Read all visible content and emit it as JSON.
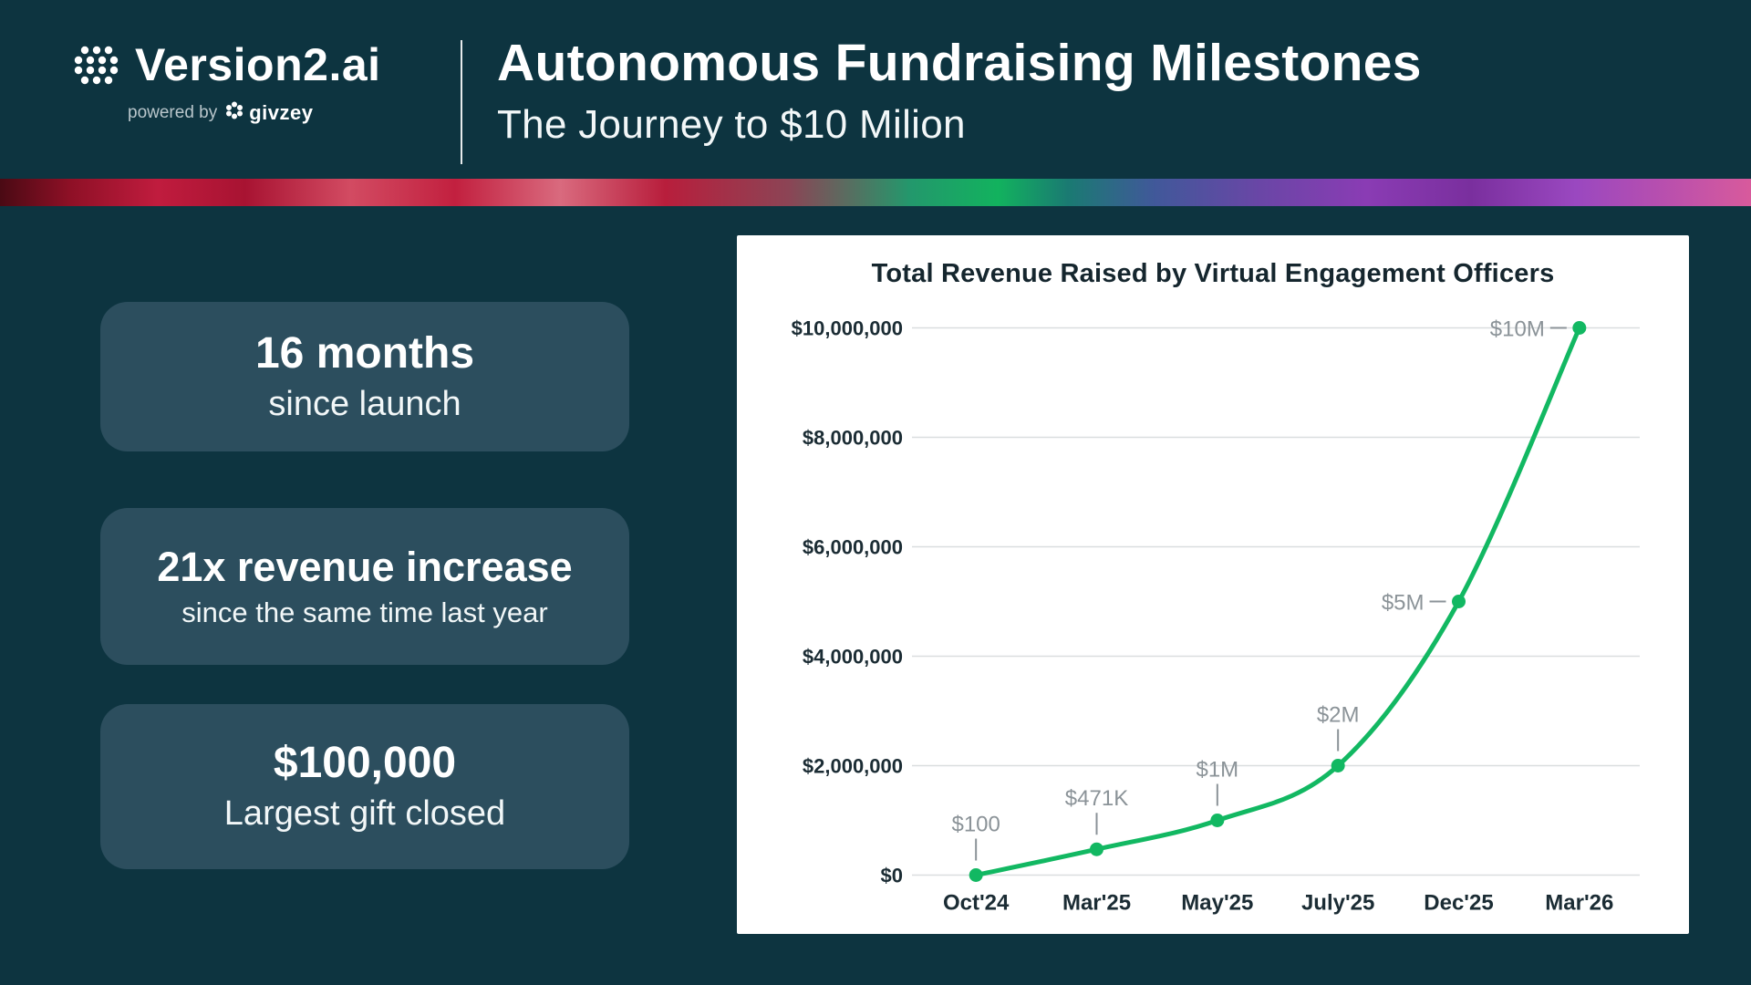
{
  "header": {
    "brand": {
      "name": "Version2.ai",
      "powered_by": "powered by",
      "powered_by_brand": "givzey"
    },
    "title": "Autonomous Fundraising Milestones",
    "subtitle": "The Journey to $10 Milion"
  },
  "stats": [
    {
      "value": "16 months",
      "label": "since launch"
    },
    {
      "value": "21x revenue increase",
      "label": "since the same time last year"
    },
    {
      "value": "$100,000",
      "label": "Largest gift closed"
    }
  ],
  "chart_data": {
    "type": "line",
    "title": "Total Revenue Raised by Virtual Engagement Officers",
    "categories": [
      "Oct'24",
      "Mar'25",
      "May'25",
      "July'25",
      "Dec'25",
      "Mar'26"
    ],
    "values": [
      100,
      471000,
      1000000,
      2000000,
      5000000,
      10000000
    ],
    "point_labels": [
      "$100",
      "$471K",
      "$1M",
      "$2M",
      "$5M",
      "$10M"
    ],
    "annotation_placement": [
      "above",
      "above",
      "above",
      "above",
      "left",
      "left"
    ],
    "xlabel": "",
    "ylabel": "",
    "ylim": [
      0,
      10000000
    ],
    "yticks": [
      0,
      2000000,
      4000000,
      6000000,
      8000000,
      10000000
    ],
    "ytick_labels": [
      "$0",
      "$2,000,000",
      "$4,000,000",
      "$6,000,000",
      "$8,000,000",
      "$10,000,000"
    ],
    "grid": true,
    "legend": false,
    "line_color": "#12b862",
    "grid_color": "#dadedf",
    "annotation_color": "#8b9398"
  },
  "colors": {
    "background": "#0d3440",
    "stat_card": "#2c4e5e",
    "chart_card": "#ffffff",
    "accent_green": "#12b862"
  }
}
